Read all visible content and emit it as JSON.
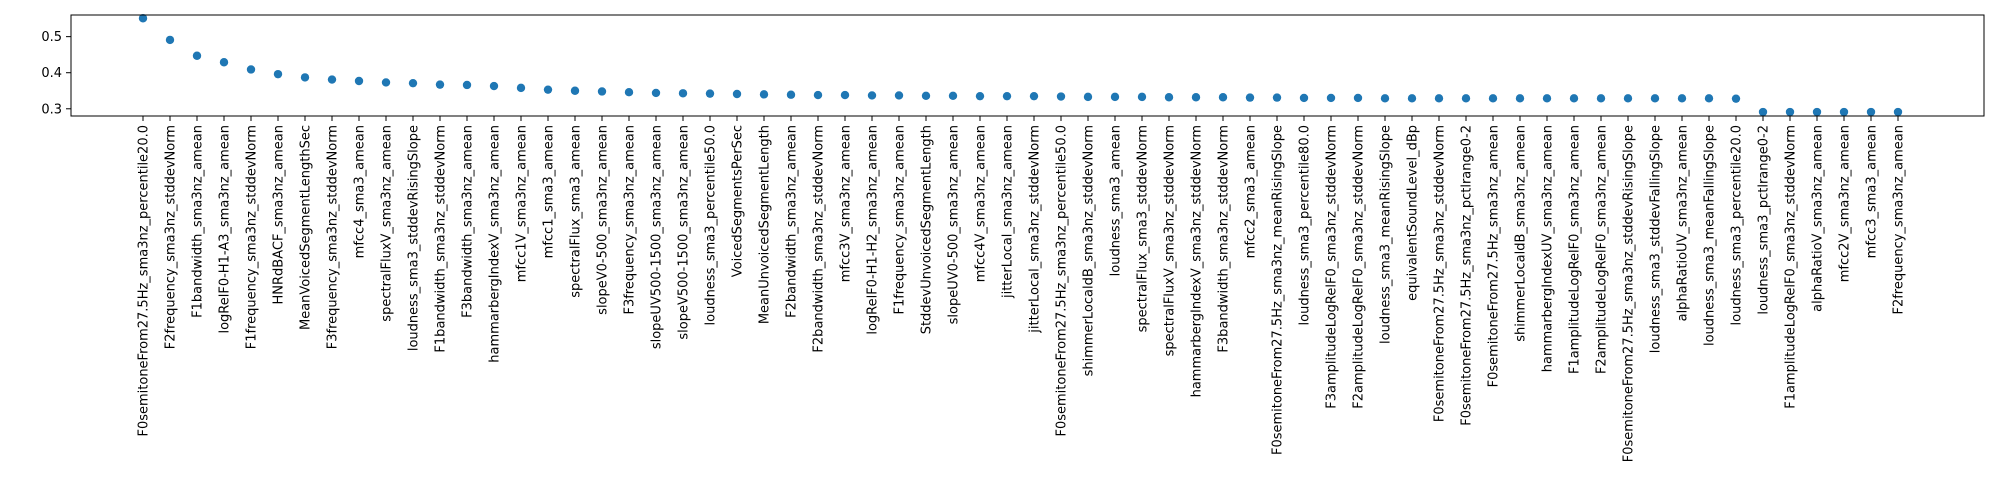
{
  "chart_data": {
    "type": "scatter",
    "title": "",
    "xlabel": "",
    "ylabel": "",
    "ylim": [
      0.28,
      0.56
    ],
    "yticks": [
      "0.3",
      "0.4",
      "0.5"
    ],
    "ytick_values": [
      0.3,
      0.4,
      0.5
    ],
    "marker_color": "#1f77b4",
    "categories": [
      "F0semitoneFrom27.5Hz_sma3nz_percentile20.0",
      "F2frequency_sma3nz_stddevNorm",
      "F1bandwidth_sma3nz_amean",
      "logRelF0-H1-A3_sma3nz_amean",
      "F1frequency_sma3nz_stddevNorm",
      "HNRdBACF_sma3nz_amean",
      "MeanVoicedSegmentLengthSec",
      "F3frequency_sma3nz_stddevNorm",
      "mfcc4_sma3_amean",
      "spectralFluxV_sma3nz_amean",
      "loudness_sma3_stddevRisingSlope",
      "F1bandwidth_sma3nz_stddevNorm",
      "F3bandwidth_sma3nz_amean",
      "hammarbergIndexV_sma3nz_amean",
      "mfcc1V_sma3nz_amean",
      "mfcc1_sma3_amean",
      "spectralFlux_sma3_amean",
      "slopeV0-500_sma3nz_amean",
      "F3frequency_sma3nz_amean",
      "slopeUV500-1500_sma3nz_amean",
      "slopeV500-1500_sma3nz_amean",
      "loudness_sma3_percentile50.0",
      "VoicedSegmentsPerSec",
      "MeanUnvoicedSegmentLength",
      "F2bandwidth_sma3nz_amean",
      "F2bandwidth_sma3nz_stddevNorm",
      "mfcc3V_sma3nz_amean",
      "logRelF0-H1-H2_sma3nz_amean",
      "F1frequency_sma3nz_amean",
      "StddevUnvoicedSegmentLength",
      "slopeUV0-500_sma3nz_amean",
      "mfcc4V_sma3nz_amean",
      "jitterLocal_sma3nz_amean",
      "jitterLocal_sma3nz_stddevNorm",
      "F0semitoneFrom27.5Hz_sma3nz_percentile50.0",
      "shimmerLocaldB_sma3nz_stddevNorm",
      "loudness_sma3_amean",
      "spectralFlux_sma3_stddevNorm",
      "spectralFluxV_sma3nz_stddevNorm",
      "hammarbergIndexV_sma3nz_stddevNorm",
      "F3bandwidth_sma3nz_stddevNorm",
      "mfcc2_sma3_amean",
      "F0semitoneFrom27.5Hz_sma3nz_meanRisingSlope",
      "loudness_sma3_percentile80.0",
      "F3amplitudeLogRelF0_sma3nz_stddevNorm",
      "F2amplitudeLogRelF0_sma3nz_stddevNorm",
      "loudness_sma3_meanRisingSlope",
      "equivalentSoundLevel_dBp",
      "F0semitoneFrom27.5Hz_sma3nz_stddevNorm",
      "F0semitoneFrom27.5Hz_sma3nz_pctlrange0-2",
      "F0semitoneFrom27.5Hz_sma3nz_amean",
      "shimmerLocaldB_sma3nz_amean",
      "hammarbergIndexUV_sma3nz_amean",
      "F1amplitudeLogRelF0_sma3nz_amean",
      "F2amplitudeLogRelF0_sma3nz_amean",
      "F0semitoneFrom27.5Hz_sma3nz_stddevRisingSlope",
      "loudness_sma3_stddevFallingSlope",
      "alphaRatioUV_sma3nz_amean",
      "loudness_sma3_meanFallingSlope",
      "loudness_sma3_percentile20.0",
      "loudness_sma3_pctlrange0-2",
      "F1amplitudeLogRelF0_sma3nz_stddevNorm",
      "alphaRatioV_sma3nz_amean",
      "mfcc2V_sma3nz_amean",
      "mfcc3_sma3_amean",
      "F2frequency_sma3nz_amean"
    ],
    "values": [
      0.551,
      0.491,
      0.447,
      0.429,
      0.409,
      0.396,
      0.387,
      0.381,
      0.377,
      0.373,
      0.371,
      0.367,
      0.366,
      0.363,
      0.358,
      0.353,
      0.35,
      0.348,
      0.346,
      0.344,
      0.343,
      0.342,
      0.341,
      0.34,
      0.339,
      0.338,
      0.338,
      0.337,
      0.337,
      0.336,
      0.336,
      0.335,
      0.335,
      0.335,
      0.334,
      0.333,
      0.333,
      0.333,
      0.332,
      0.332,
      0.332,
      0.331,
      0.331,
      0.33,
      0.33,
      0.33,
      0.329,
      0.329,
      0.329,
      0.329,
      0.329,
      0.329,
      0.329,
      0.329,
      0.329,
      0.329,
      0.329,
      0.329,
      0.329,
      0.328,
      0.291,
      0.291,
      0.291,
      0.291,
      0.291,
      0.291
    ]
  }
}
